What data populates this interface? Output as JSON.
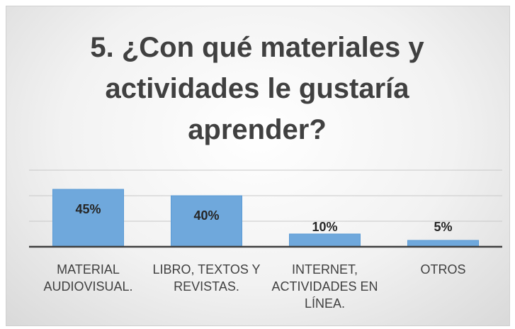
{
  "chart_data": {
    "type": "bar",
    "title": "5. ¿Con qué materiales y actividades le gustaría aprender?",
    "categories": [
      "MATERIAL AUDIOVISUAL.",
      "LIBRO, TEXTOS Y REVISTAS.",
      "INTERNET, ACTIVIDADES EN LÍNEA.",
      "OTROS"
    ],
    "values": [
      45,
      40,
      10,
      5
    ],
    "value_labels": [
      "45%",
      "40%",
      "10%",
      "5%"
    ],
    "color": "#6fa8dc",
    "ylim": [
      0,
      60
    ],
    "yticks": [
      0,
      20,
      40,
      60
    ],
    "grid": true
  }
}
